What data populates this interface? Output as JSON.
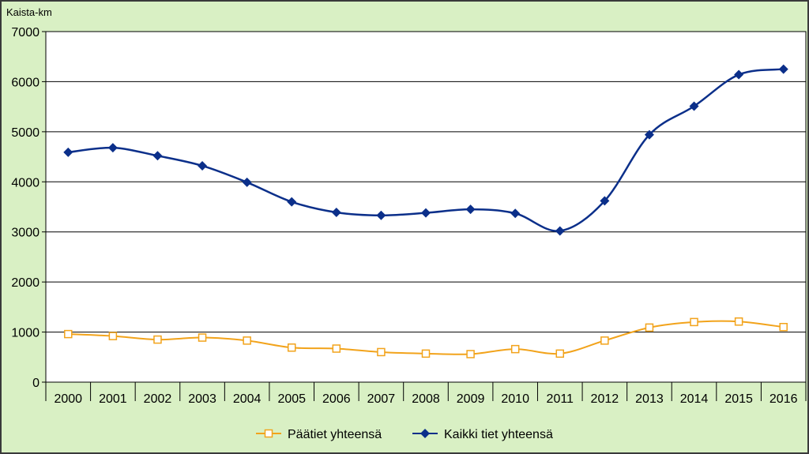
{
  "chart_data": {
    "type": "line",
    "title": "",
    "xlabel": "",
    "ylabel": "Kaista-km",
    "ylim": [
      0,
      7000
    ],
    "yticks": [
      0,
      1000,
      2000,
      3000,
      4000,
      5000,
      6000,
      7000
    ],
    "grid": true,
    "legend_position": "bottom",
    "categories": [
      "2000",
      "2001",
      "2002",
      "2003",
      "2004",
      "2005",
      "2006",
      "2007",
      "2008",
      "2009",
      "2010",
      "2011",
      "2012",
      "2013",
      "2014",
      "2015",
      "2016"
    ],
    "series": [
      {
        "name": "Päätiet yhteensä",
        "color": "#f2a31b",
        "marker": "square-open",
        "values": [
          960,
          920,
          850,
          890,
          830,
          690,
          670,
          600,
          570,
          560,
          660,
          570,
          830,
          1090,
          1200,
          1210,
          1100
        ]
      },
      {
        "name": "Kaikki tiet yhteensä",
        "color": "#0b2f8a",
        "marker": "diamond-filled",
        "values": [
          4590,
          4680,
          4520,
          4320,
          3990,
          3600,
          3390,
          3330,
          3380,
          3450,
          3370,
          3020,
          3620,
          4940,
          5510,
          6140,
          6250
        ]
      }
    ]
  },
  "colors": {
    "background": "#d9f0c4",
    "plot_background": "#ffffff",
    "gridline": "#000000"
  }
}
